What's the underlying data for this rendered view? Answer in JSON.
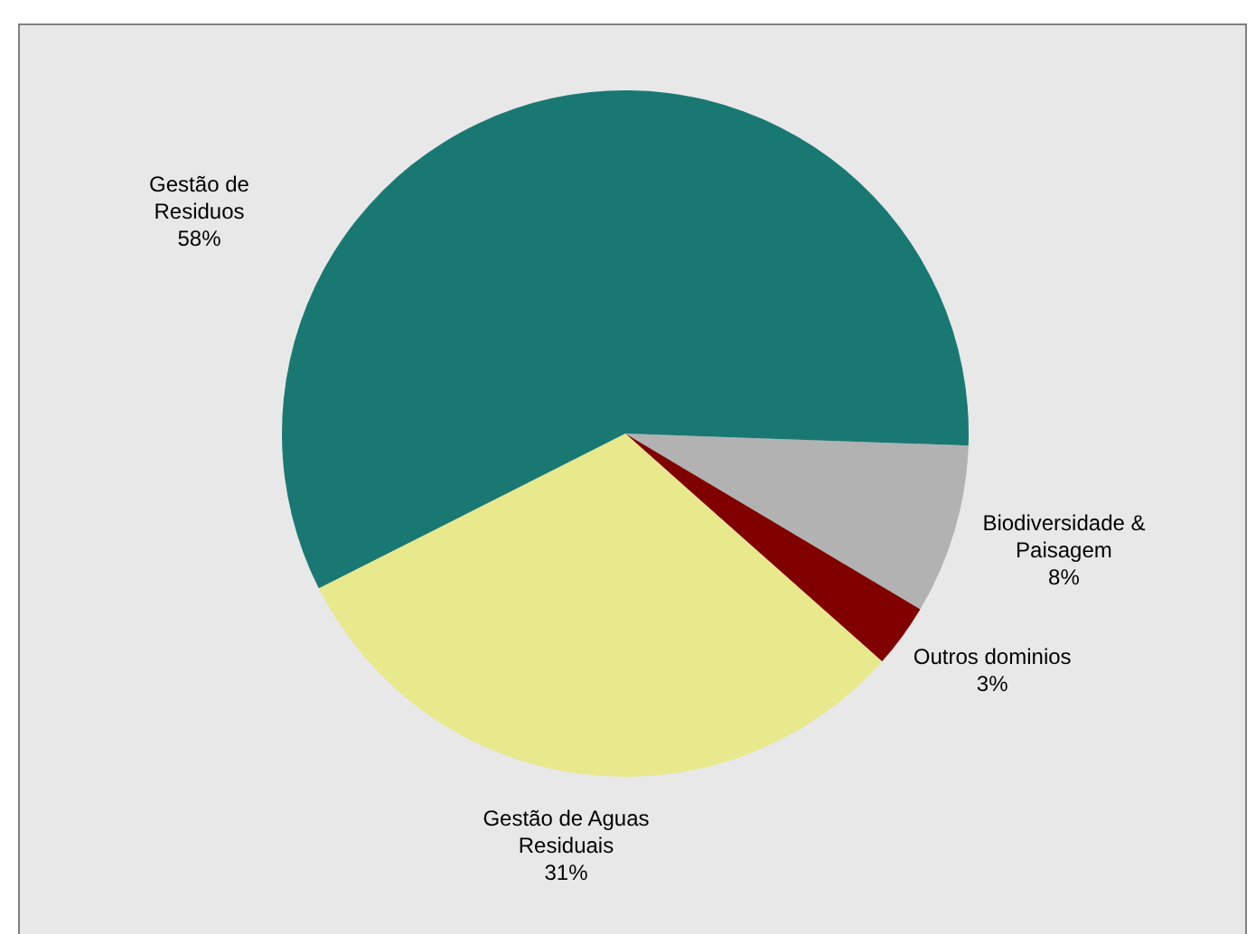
{
  "chart_data": {
    "type": "pie",
    "categories": [
      "Biodiversidade & Paisagem",
      "Outros dominios",
      "Gestão de Aguas Residuais",
      "Gestão de Residuos"
    ],
    "values": [
      8,
      3,
      31,
      58
    ],
    "colors": [
      "#b2b2b2",
      "#800000",
      "#e8e88c",
      "#1a7873"
    ],
    "value_labels": [
      "8%",
      "3%",
      "31%",
      "58%"
    ],
    "legend": false
  }
}
